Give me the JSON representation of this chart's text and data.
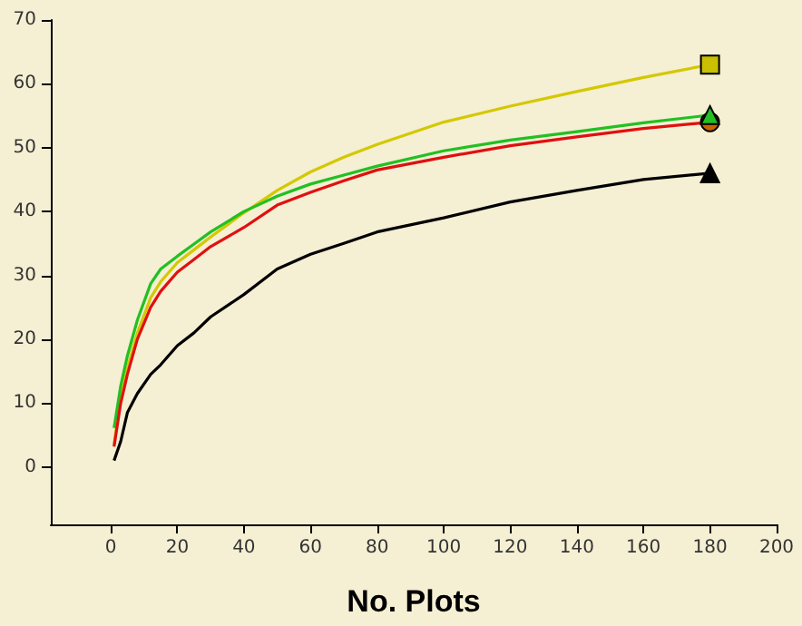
{
  "chart_data": {
    "type": "line",
    "xlabel": "No. Plots",
    "x": [
      1,
      3,
      5,
      8,
      12,
      15,
      20,
      25,
      30,
      40,
      50,
      60,
      70,
      80,
      100,
      120,
      140,
      160,
      180
    ],
    "series": [
      {
        "color": "#d4c800",
        "values": [
          3.5,
          11,
          15.5,
          21,
          26.5,
          29,
          32,
          34,
          36,
          39.8,
          43.3,
          46.2,
          48.5,
          50.5,
          54,
          56.5,
          58.8,
          61,
          63
        ]
      },
      {
        "color": "#22c022",
        "values": [
          6.1,
          12.7,
          17.4,
          23,
          28.7,
          31,
          33,
          34.9,
          36.8,
          40,
          42.4,
          44.3,
          45.7,
          47.1,
          49.5,
          51.2,
          52.5,
          53.9,
          55.1
        ]
      },
      {
        "color": "#e01010",
        "values": [
          3.2,
          10,
          14.5,
          20,
          25,
          27.5,
          30.5,
          32.5,
          34.5,
          37.5,
          41,
          43,
          44.8,
          46.5,
          48.5,
          50.3,
          51.7,
          53,
          54
        ]
      },
      {
        "color": "#000000",
        "values": [
          1,
          4,
          8.5,
          11.5,
          14.5,
          16,
          19,
          21,
          23.5,
          27,
          31,
          33.3,
          35,
          36.8,
          39,
          41.5,
          43.3,
          45,
          46
        ]
      },
      {
        "type": "scatter",
        "marker": "square",
        "color": "#c8c000",
        "values": [
          null,
          null,
          null,
          null,
          null,
          null,
          null,
          null,
          null,
          null,
          null,
          null,
          null,
          null,
          null,
          null,
          null,
          null,
          63
        ]
      },
      {
        "type": "scatter",
        "marker": "circle",
        "color": "#c86400",
        "values": [
          null,
          null,
          null,
          null,
          null,
          null,
          null,
          null,
          null,
          null,
          null,
          null,
          null,
          null,
          null,
          null,
          null,
          null,
          54
        ]
      },
      {
        "type": "scatter",
        "marker": "triangle",
        "color": "#22c022",
        "values": [
          null,
          null,
          null,
          null,
          null,
          null,
          null,
          null,
          null,
          null,
          null,
          null,
          null,
          null,
          null,
          null,
          null,
          null,
          55.1
        ]
      },
      {
        "type": "scatter",
        "marker": "triangle",
        "color": "#000000",
        "values": [
          null,
          null,
          null,
          null,
          null,
          null,
          null,
          null,
          null,
          null,
          null,
          null,
          null,
          null,
          null,
          null,
          null,
          null,
          46
        ]
      }
    ],
    "xlim": [
      -18,
      200
    ],
    "xticks": [
      0,
      20,
      40,
      60,
      80,
      100,
      120,
      140,
      160,
      180,
      200
    ],
    "ylim": [
      -9,
      70
    ],
    "yticks": [
      0,
      10,
      20,
      30,
      40,
      50,
      60,
      70
    ],
    "grid": false
  }
}
